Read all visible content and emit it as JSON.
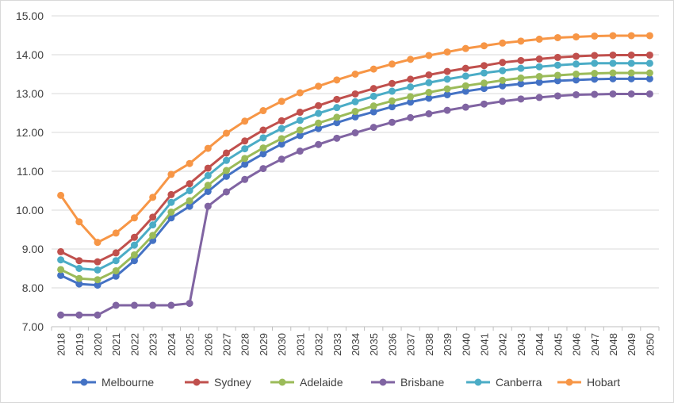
{
  "chart_data": {
    "type": "line",
    "title": "",
    "xlabel": "",
    "ylabel": "",
    "ylim": [
      7.0,
      15.0
    ],
    "yticks": [
      "7.00",
      "8.00",
      "9.00",
      "10.00",
      "11.00",
      "12.00",
      "13.00",
      "14.00",
      "15.00"
    ],
    "categories": [
      "2018",
      "2019",
      "2020",
      "2021",
      "2022",
      "2023",
      "2024",
      "2025",
      "2026",
      "2027",
      "2028",
      "2029",
      "2030",
      "2031",
      "2032",
      "2033",
      "2034",
      "2035",
      "2036",
      "2037",
      "2038",
      "2039",
      "2040",
      "2041",
      "2042",
      "2043",
      "2044",
      "2045",
      "2046",
      "2047",
      "2048",
      "2049",
      "2050"
    ],
    "grid": "horizontal",
    "legend_position": "bottom",
    "series": [
      {
        "name": "Melbourne",
        "color": "#4472c4",
        "values": [
          8.32,
          8.1,
          8.07,
          8.3,
          8.7,
          9.22,
          9.8,
          10.1,
          10.48,
          10.87,
          11.18,
          11.45,
          11.7,
          11.92,
          12.1,
          12.25,
          12.4,
          12.53,
          12.66,
          12.78,
          12.88,
          12.97,
          13.06,
          13.13,
          13.2,
          13.25,
          13.29,
          13.33,
          13.35,
          13.37,
          13.38,
          13.38,
          13.38
        ]
      },
      {
        "name": "Sydney",
        "color": "#c0504d",
        "values": [
          8.93,
          8.7,
          8.67,
          8.9,
          9.3,
          9.82,
          10.4,
          10.68,
          11.08,
          11.47,
          11.78,
          12.06,
          12.3,
          12.52,
          12.69,
          12.85,
          12.99,
          13.13,
          13.26,
          13.37,
          13.48,
          13.57,
          13.65,
          13.72,
          13.8,
          13.85,
          13.89,
          13.93,
          13.96,
          13.98,
          13.99,
          13.99,
          13.99
        ]
      },
      {
        "name": "Adelaide",
        "color": "#9bbb59",
        "values": [
          8.47,
          8.24,
          8.21,
          8.44,
          8.85,
          9.35,
          9.95,
          10.24,
          10.64,
          11.02,
          11.33,
          11.6,
          11.84,
          12.06,
          12.24,
          12.39,
          12.54,
          12.68,
          12.81,
          12.92,
          13.03,
          13.12,
          13.2,
          13.27,
          13.34,
          13.4,
          13.44,
          13.47,
          13.5,
          13.52,
          13.53,
          13.53,
          13.53
        ]
      },
      {
        "name": "Brisbane",
        "color": "#8064a2",
        "values": [
          7.3,
          7.3,
          7.3,
          7.55,
          7.55,
          7.55,
          7.55,
          7.6,
          10.1,
          10.47,
          10.79,
          11.07,
          11.31,
          11.52,
          11.69,
          11.85,
          11.99,
          12.13,
          12.26,
          12.38,
          12.48,
          12.57,
          12.65,
          12.73,
          12.8,
          12.86,
          12.9,
          12.94,
          12.97,
          12.98,
          12.99,
          12.99,
          12.99
        ]
      },
      {
        "name": "Canberra",
        "color": "#4bacc6",
        "values": [
          8.72,
          8.5,
          8.46,
          8.7,
          9.1,
          9.62,
          10.2,
          10.5,
          10.89,
          11.28,
          11.58,
          11.86,
          12.1,
          12.31,
          12.49,
          12.64,
          12.79,
          12.93,
          13.06,
          13.17,
          13.28,
          13.37,
          13.45,
          13.53,
          13.59,
          13.65,
          13.69,
          13.73,
          13.76,
          13.78,
          13.78,
          13.78,
          13.78
        ]
      },
      {
        "name": "Hobart",
        "color": "#f79646",
        "values": [
          10.38,
          9.7,
          9.17,
          9.41,
          9.8,
          10.33,
          10.92,
          11.2,
          11.59,
          11.98,
          12.29,
          12.56,
          12.8,
          13.02,
          13.19,
          13.35,
          13.5,
          13.63,
          13.76,
          13.88,
          13.98,
          14.07,
          14.16,
          14.23,
          14.3,
          14.35,
          14.4,
          14.44,
          14.46,
          14.48,
          14.49,
          14.49,
          14.49
        ]
      }
    ]
  }
}
